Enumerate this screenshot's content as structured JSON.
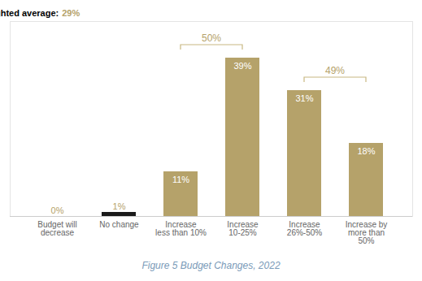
{
  "chart_data": {
    "type": "bar",
    "title": "Figure 5 Budget Changes, 2022",
    "categories": [
      "Budget will\ndecrease",
      "No change",
      "Increase\nless than 10%",
      "Increase\n10-25%",
      "Increase\n26%-50%",
      "Increase by\nmore than\n50%"
    ],
    "values": [
      0,
      1,
      11,
      39,
      31,
      18
    ],
    "value_labels": [
      "0%",
      "1%",
      "11%",
      "39%",
      "31%",
      "18%"
    ],
    "data_labels": true,
    "colors": [
      "#B5A26A",
      "#1a1a1a",
      "#B5A26A",
      "#B5A26A",
      "#B5A26A",
      "#B5A26A"
    ],
    "ylim": [
      0,
      48
    ],
    "tick_labels": "x",
    "grid": false,
    "annotations": [
      {
        "text": "Weighted average:",
        "label": "29%",
        "value": 29
      },
      {
        "label": "50%",
        "value": 50,
        "from": "Increase\nless than 10%",
        "to": "Increase\n10-25%"
      },
      {
        "label": "49%",
        "value": 49,
        "from": "Increase\n26%-50%",
        "to": "Increase by\nmore than\n50%"
      }
    ]
  }
}
